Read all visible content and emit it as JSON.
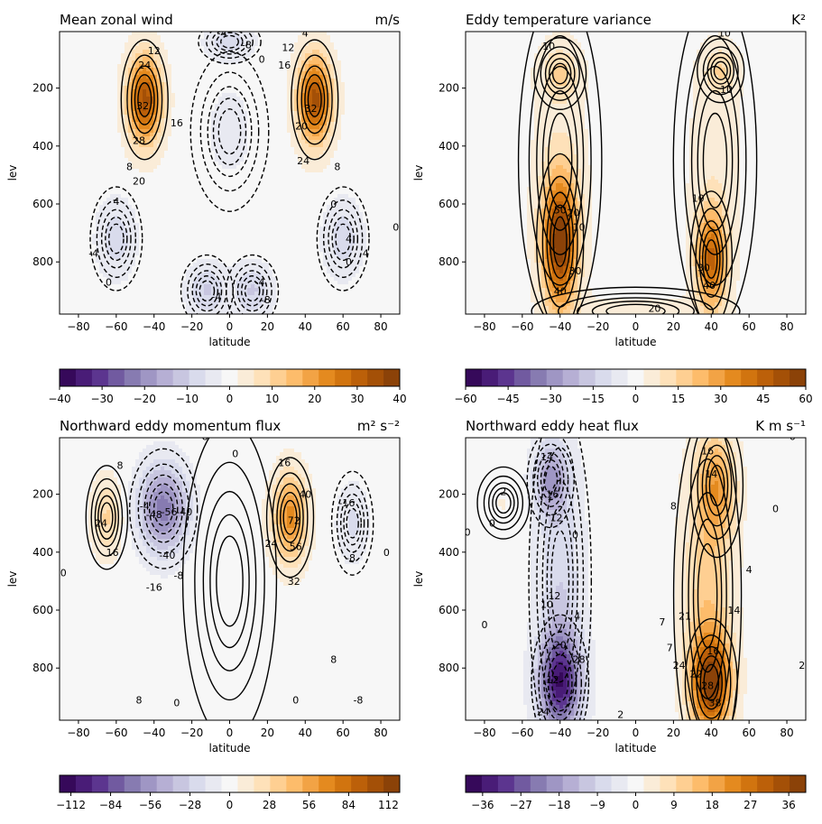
{
  "chart_data": [
    {
      "type": "contour",
      "title": "Mean zonal wind",
      "units": "m/s",
      "xlabel": "latitude",
      "ylabel": "lev",
      "xlim": [
        -90,
        90
      ],
      "ylim": [
        980,
        5
      ],
      "y_inverted": true,
      "xticks": [
        "-80",
        "-60",
        "-40",
        "-20",
        "0",
        "20",
        "40",
        "60",
        "80"
      ],
      "yticks": [
        "200",
        "400",
        "600",
        "800"
      ],
      "colorbar": {
        "range": [
          -40,
          40
        ],
        "ticks": [
          "-40",
          "-30",
          "-20",
          "-10",
          "0",
          "10",
          "20",
          "30",
          "40"
        ],
        "colormap": "PuOr_r"
      },
      "features": [
        {
          "lat": -45,
          "lev": 240,
          "value": 34,
          "ax": 9,
          "ay": 150
        },
        {
          "lat": 45,
          "lev": 240,
          "value": 34,
          "ax": 9,
          "ay": 150
        },
        {
          "lat": 0,
          "lev": 40,
          "value": -8,
          "ax": 12,
          "ay": 55
        },
        {
          "lat": 0,
          "lev": 350,
          "value": -3,
          "ax": 15,
          "ay": 200
        },
        {
          "lat": -60,
          "lev": 720,
          "value": -8,
          "ax": 10,
          "ay": 130
        },
        {
          "lat": 60,
          "lev": 720,
          "value": -8,
          "ax": 10,
          "ay": 130
        },
        {
          "lat": -12,
          "lev": 900,
          "value": -10,
          "ax": 10,
          "ay": 90
        },
        {
          "lat": 12,
          "lev": 900,
          "value": -10,
          "ax": 10,
          "ay": 90
        }
      ],
      "contour_labels": [
        {
          "lat": -40,
          "lev": 70,
          "text": "12"
        },
        {
          "lat": -45,
          "lev": 120,
          "text": "24"
        },
        {
          "lat": -46,
          "lev": 260,
          "text": "32"
        },
        {
          "lat": -48,
          "lev": 380,
          "text": "28"
        },
        {
          "lat": -28,
          "lev": 320,
          "text": "16"
        },
        {
          "lat": -53,
          "lev": 470,
          "text": "8"
        },
        {
          "lat": -48,
          "lev": 520,
          "text": "20"
        },
        {
          "lat": -60,
          "lev": 590,
          "text": "4"
        },
        {
          "lat": -72,
          "lev": 770,
          "text": "-4"
        },
        {
          "lat": -64,
          "lev": 870,
          "text": "0"
        },
        {
          "lat": -4,
          "lev": 10,
          "text": "-4"
        },
        {
          "lat": 9,
          "lev": 50,
          "text": "-8"
        },
        {
          "lat": 17,
          "lev": 100,
          "text": "0"
        },
        {
          "lat": 31,
          "lev": 60,
          "text": "12"
        },
        {
          "lat": 29,
          "lev": 120,
          "text": "16"
        },
        {
          "lat": 38,
          "lev": 330,
          "text": "20"
        },
        {
          "lat": 43,
          "lev": 270,
          "text": "32"
        },
        {
          "lat": 39,
          "lev": 450,
          "text": "24"
        },
        {
          "lat": 57,
          "lev": 470,
          "text": "8"
        },
        {
          "lat": 40,
          "lev": 10,
          "text": "4"
        },
        {
          "lat": 55,
          "lev": 600,
          "text": "0"
        },
        {
          "lat": 63,
          "lev": 720,
          "text": "4"
        },
        {
          "lat": 63,
          "lev": 800,
          "text": "0"
        },
        {
          "lat": 72,
          "lev": 770,
          "text": "4"
        },
        {
          "lat": -7,
          "lev": 920,
          "text": "-4"
        },
        {
          "lat": 16,
          "lev": 870,
          "text": "-4"
        },
        {
          "lat": 19,
          "lev": 930,
          "text": "-8"
        },
        {
          "lat": 88,
          "lev": 680,
          "text": "0"
        }
      ]
    },
    {
      "type": "contour",
      "title": "Eddy temperature variance",
      "units": "K²",
      "xlabel": "latitude",
      "ylabel": "lev",
      "xlim": [
        -90,
        90
      ],
      "ylim": [
        980,
        5
      ],
      "y_inverted": true,
      "xticks": [
        "-80",
        "-60",
        "-40",
        "-20",
        "0",
        "20",
        "40",
        "60",
        "80"
      ],
      "yticks": [
        "200",
        "400",
        "600",
        "800"
      ],
      "colorbar": {
        "range": [
          -60,
          60
        ],
        "ticks": [
          "-60",
          "-45",
          "-30",
          "-15",
          "0",
          "15",
          "30",
          "45",
          "60"
        ],
        "colormap": "PuOr_r"
      },
      "features": [
        {
          "lat": -40,
          "lev": 730,
          "value": 58,
          "ax": 9,
          "ay": 220
        },
        {
          "lat": 40,
          "lev": 790,
          "value": 42,
          "ax": 8,
          "ay": 170
        },
        {
          "lat": -40,
          "lev": 150,
          "value": 13,
          "ax": 10,
          "ay": 90
        },
        {
          "lat": 45,
          "lev": 140,
          "value": 12,
          "ax": 9,
          "ay": 80
        },
        {
          "lat": -40,
          "lev": 450,
          "value": 6,
          "ax": 16,
          "ay": 420
        },
        {
          "lat": 42,
          "lev": 450,
          "value": 6,
          "ax": 16,
          "ay": 420
        },
        {
          "lat": 0,
          "lev": 970,
          "value": 5,
          "ax": 40,
          "ay": 60
        }
      ],
      "contour_labels": [
        {
          "lat": -46,
          "lev": 55,
          "text": "10"
        },
        {
          "lat": 47,
          "lev": 10,
          "text": "10"
        },
        {
          "lat": 48,
          "lev": 205,
          "text": "10"
        },
        {
          "lat": -40,
          "lev": 620,
          "text": "50"
        },
        {
          "lat": -33,
          "lev": 630,
          "text": "20"
        },
        {
          "lat": -30,
          "lev": 680,
          "text": "10"
        },
        {
          "lat": -32,
          "lev": 830,
          "text": "30"
        },
        {
          "lat": -40,
          "lev": 900,
          "text": "40"
        },
        {
          "lat": 33,
          "lev": 580,
          "text": "10"
        },
        {
          "lat": 36,
          "lev": 820,
          "text": "30"
        },
        {
          "lat": 39,
          "lev": 880,
          "text": "40"
        },
        {
          "lat": 10,
          "lev": 960,
          "text": "20"
        }
      ]
    },
    {
      "type": "contour",
      "title": "Northward eddy momentum flux",
      "units": "m² s⁻²",
      "xlabel": "latitude",
      "ylabel": "lev",
      "xlim": [
        -90,
        90
      ],
      "ylim": [
        980,
        5
      ],
      "y_inverted": true,
      "xticks": [
        "-80",
        "-60",
        "-40",
        "-20",
        "0",
        "20",
        "40",
        "60",
        "80"
      ],
      "yticks": [
        "200",
        "400",
        "600",
        "800"
      ],
      "colorbar": {
        "range": [
          -120,
          120
        ],
        "ticks": [
          "-112",
          "-84",
          "-56",
          "-28",
          "0",
          "28",
          "56",
          "84",
          "112"
        ],
        "colormap": "PuOr_r"
      },
      "features": [
        {
          "lat": -65,
          "lev": 280,
          "value": 30,
          "ax": 8,
          "ay": 130
        },
        {
          "lat": -35,
          "lev": 250,
          "value": -68,
          "ax": 13,
          "ay": 150
        },
        {
          "lat": 32,
          "lev": 280,
          "value": 68,
          "ax": 9,
          "ay": 150
        },
        {
          "lat": 65,
          "lev": 300,
          "value": -20,
          "ax": 8,
          "ay": 130
        },
        {
          "lat": 0,
          "lev": 500,
          "value": 3,
          "ax": 18,
          "ay": 400
        }
      ],
      "contour_labels": [
        {
          "lat": -58,
          "lev": 100,
          "text": "8"
        },
        {
          "lat": -68,
          "lev": 300,
          "text": "24"
        },
        {
          "lat": -62,
          "lev": 400,
          "text": "16"
        },
        {
          "lat": -45,
          "lev": 240,
          "text": "-4"
        },
        {
          "lat": -40,
          "lev": 270,
          "text": "-48"
        },
        {
          "lat": -32,
          "lev": 260,
          "text": "-56"
        },
        {
          "lat": -24,
          "lev": 260,
          "text": "-40"
        },
        {
          "lat": -33,
          "lev": 410,
          "text": "-40"
        },
        {
          "lat": -27,
          "lev": 480,
          "text": "-8"
        },
        {
          "lat": -40,
          "lev": 520,
          "text": "-16"
        },
        {
          "lat": -88,
          "lev": 470,
          "text": "0"
        },
        {
          "lat": -13,
          "lev": 0,
          "text": "8"
        },
        {
          "lat": 3,
          "lev": 60,
          "text": "0"
        },
        {
          "lat": 29,
          "lev": 90,
          "text": "16"
        },
        {
          "lat": 34,
          "lev": 290,
          "text": "72"
        },
        {
          "lat": 40,
          "lev": 200,
          "text": "40"
        },
        {
          "lat": 22,
          "lev": 370,
          "text": "24"
        },
        {
          "lat": 35,
          "lev": 380,
          "text": "56"
        },
        {
          "lat": 34,
          "lev": 500,
          "text": "32"
        },
        {
          "lat": 62,
          "lev": 230,
          "text": "-16"
        },
        {
          "lat": 64,
          "lev": 420,
          "text": "-8"
        },
        {
          "lat": 83,
          "lev": 400,
          "text": "0"
        },
        {
          "lat": 55,
          "lev": 770,
          "text": "8"
        },
        {
          "lat": 35,
          "lev": 910,
          "text": "0"
        },
        {
          "lat": 68,
          "lev": 910,
          "text": "-8"
        },
        {
          "lat": -48,
          "lev": 910,
          "text": "8"
        },
        {
          "lat": -28,
          "lev": 920,
          "text": "0"
        }
      ]
    },
    {
      "type": "contour",
      "title": "Northward eddy heat flux",
      "units": "K m s⁻¹",
      "xlabel": "latitude",
      "ylabel": "lev",
      "xlim": [
        -90,
        90
      ],
      "ylim": [
        980,
        5
      ],
      "y_inverted": true,
      "xticks": [
        "-80",
        "-60",
        "-40",
        "-20",
        "0",
        "20",
        "40",
        "60",
        "80"
      ],
      "yticks": [
        "200",
        "400",
        "600",
        "800"
      ],
      "colorbar": {
        "range": [
          -40,
          40
        ],
        "ticks": [
          "-36",
          "-27",
          "-18",
          "-9",
          "0",
          "9",
          "18",
          "27",
          "36"
        ],
        "colormap": "PuOr_r"
      },
      "features": [
        {
          "lat": -45,
          "lev": 150,
          "value": -16,
          "ax": 9,
          "ay": 120
        },
        {
          "lat": -40,
          "lev": 850,
          "value": -32,
          "ax": 11,
          "ay": 170
        },
        {
          "lat": -40,
          "lev": 500,
          "value": -9,
          "ax": 12,
          "ay": 450
        },
        {
          "lat": 43,
          "lev": 170,
          "value": 16,
          "ax": 10,
          "ay": 180
        },
        {
          "lat": 40,
          "lev": 850,
          "value": 34,
          "ax": 10,
          "ay": 160
        },
        {
          "lat": 38,
          "lev": 550,
          "value": 12,
          "ax": 13,
          "ay": 460
        },
        {
          "lat": -70,
          "lev": 230,
          "value": 2,
          "ax": 10,
          "ay": 90
        }
      ],
      "contour_labels": [
        {
          "lat": -47,
          "lev": 70,
          "text": "14"
        },
        {
          "lat": -44,
          "lev": 200,
          "text": "16"
        },
        {
          "lat": -42,
          "lev": 280,
          "text": "12"
        },
        {
          "lat": -70,
          "lev": 190,
          "text": "2"
        },
        {
          "lat": -76,
          "lev": 300,
          "text": "0"
        },
        {
          "lat": -89,
          "lev": 330,
          "text": "0"
        },
        {
          "lat": -32,
          "lev": 340,
          "text": "0"
        },
        {
          "lat": -43,
          "lev": 550,
          "text": "12"
        },
        {
          "lat": -47,
          "lev": 580,
          "text": "10"
        },
        {
          "lat": -31,
          "lev": 620,
          "text": "4"
        },
        {
          "lat": -40,
          "lev": 660,
          "text": "7"
        },
        {
          "lat": -40,
          "lev": 720,
          "text": "20"
        },
        {
          "lat": -30,
          "lev": 770,
          "text": "28"
        },
        {
          "lat": -44,
          "lev": 840,
          "text": "12"
        },
        {
          "lat": -49,
          "lev": 950,
          "text": "24"
        },
        {
          "lat": -80,
          "lev": 650,
          "text": "0"
        },
        {
          "lat": -8,
          "lev": 960,
          "text": "2"
        },
        {
          "lat": 38,
          "lev": 50,
          "text": "16"
        },
        {
          "lat": 40,
          "lev": 130,
          "text": "14"
        },
        {
          "lat": 20,
          "lev": 240,
          "text": "8"
        },
        {
          "lat": 60,
          "lev": 460,
          "text": "4"
        },
        {
          "lat": 74,
          "lev": 250,
          "text": "0"
        },
        {
          "lat": 83,
          "lev": 0,
          "text": "0"
        },
        {
          "lat": 52,
          "lev": 600,
          "text": "14"
        },
        {
          "lat": 26,
          "lev": 620,
          "text": "21"
        },
        {
          "lat": 41,
          "lev": 740,
          "text": "16"
        },
        {
          "lat": 23,
          "lev": 790,
          "text": "24"
        },
        {
          "lat": 32,
          "lev": 820,
          "text": "22"
        },
        {
          "lat": 38,
          "lev": 860,
          "text": "28"
        },
        {
          "lat": 42,
          "lev": 920,
          "text": "38"
        },
        {
          "lat": 14,
          "lev": 640,
          "text": "7"
        },
        {
          "lat": 18,
          "lev": 730,
          "text": "7"
        },
        {
          "lat": 88,
          "lev": 790,
          "text": "2"
        }
      ]
    }
  ]
}
